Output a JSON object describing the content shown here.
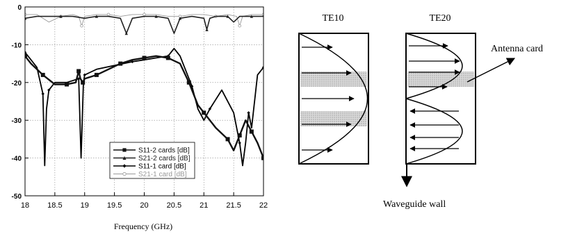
{
  "chart_data": [
    {
      "type": "line",
      "title": "",
      "xlabel": "Frequency (GHz)",
      "ylabel": "",
      "xlim": [
        18,
        22
      ],
      "ylim": [
        -50,
        0
      ],
      "grid": true,
      "legend_position": "bottom-center",
      "x_ticks": [
        "18",
        "18.5",
        "19",
        "19.5",
        "20",
        "20.5",
        "21",
        "21.5",
        "22"
      ],
      "y_ticks": [
        "0",
        "-10",
        "-20",
        "-30",
        "-40",
        "-50"
      ],
      "series": [
        {
          "name": "S11-2 cards [dB]",
          "marker": "square",
          "color": "#111111",
          "x": [
            18.0,
            18.1,
            18.3,
            18.5,
            18.7,
            18.85,
            18.9,
            18.93,
            18.97,
            19.0,
            19.2,
            19.4,
            19.6,
            19.8,
            20.0,
            20.2,
            20.4,
            20.6,
            20.75,
            20.9,
            21.0,
            21.2,
            21.4,
            21.5,
            21.6,
            21.7,
            21.8,
            21.9,
            22.0
          ],
          "y": [
            -13,
            -15,
            -18,
            -20.5,
            -20.5,
            -20,
            -17,
            -19,
            -20,
            -19,
            -18,
            -16.5,
            -15,
            -14,
            -13.5,
            -13,
            -13.5,
            -15,
            -20,
            -26,
            -28,
            -32,
            -35,
            -38,
            -34,
            -30,
            -33,
            -36,
            -40
          ]
        },
        {
          "name": "S21-2 cards [dB]",
          "marker": "triangle",
          "color": "#222222",
          "x": [
            18.0,
            18.2,
            18.4,
            18.6,
            18.8,
            19.0,
            19.2,
            19.4,
            19.6,
            19.7,
            19.8,
            20.0,
            20.2,
            20.4,
            20.5,
            20.6,
            20.8,
            21.0,
            21.05,
            21.1,
            21.2,
            21.4,
            21.5,
            21.6,
            21.8,
            22.0
          ],
          "y": [
            -3,
            -2.5,
            -2.5,
            -2.5,
            -2.5,
            -3,
            -2.5,
            -2.5,
            -3,
            -7,
            -3,
            -2.5,
            -2.5,
            -3,
            -7,
            -3,
            -2.5,
            -3,
            -6,
            -3,
            -2.5,
            -2.5,
            -4,
            -2.5,
            -2.5,
            -2.5
          ]
        },
        {
          "name": "S11-1 card [dB]",
          "marker": "diamond",
          "color": "#000000",
          "x": [
            18.0,
            18.1,
            18.2,
            18.3,
            18.33,
            18.36,
            18.4,
            18.5,
            18.7,
            18.9,
            18.94,
            18.98,
            19.0,
            19.2,
            19.5,
            19.8,
            20.0,
            20.2,
            20.4,
            20.5,
            20.6,
            20.8,
            20.9,
            21.0,
            21.1,
            21.3,
            21.5,
            21.6,
            21.65,
            21.7,
            21.75,
            21.8,
            21.9,
            22.0
          ],
          "y": [
            -12,
            -14,
            -16,
            -23,
            -42,
            -27,
            -22,
            -20,
            -20,
            -19,
            -40,
            -20,
            -18,
            -16.5,
            -15.5,
            -14.5,
            -14,
            -13.5,
            -13,
            -11,
            -13,
            -21,
            -27,
            -30,
            -27,
            -22,
            -28,
            -36,
            -42,
            -36,
            -28,
            -32,
            -18,
            -16
          ]
        },
        {
          "name": "S21-1 card [dB]",
          "marker": "circle",
          "color": "#999999",
          "x": [
            18.0,
            18.2,
            18.4,
            18.6,
            18.8,
            18.9,
            18.95,
            19.0,
            19.2,
            19.4,
            19.6,
            19.8,
            20.0,
            20.2,
            20.4,
            20.6,
            20.8,
            21.0,
            21.2,
            21.4,
            21.55,
            21.6,
            21.65,
            21.8,
            22.0
          ],
          "y": [
            -2,
            -2,
            -4,
            -2.5,
            -2,
            -2.5,
            -5,
            -2.5,
            -2,
            -2,
            -2.5,
            -2,
            -2,
            -2,
            -2.5,
            -2.5,
            -2,
            -2,
            -2.5,
            -2,
            -2.5,
            -5,
            -2.5,
            -2,
            -2
          ]
        }
      ]
    },
    {
      "type": "diagram",
      "labels": {
        "te10": "TE10",
        "te20": "TE20",
        "antenna": "Antenna card",
        "wall": "Waveguide wall"
      }
    }
  ]
}
